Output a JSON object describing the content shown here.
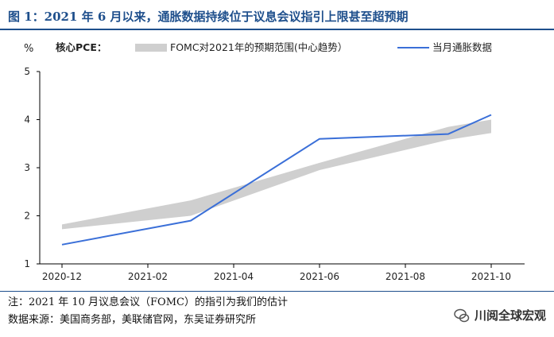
{
  "title": "图 1：2021 年 6 月以来，通胀数据持续位于议息会议指引上限甚至超预期",
  "note": "注：2021 年 10 月议息会议（FOMC）的指引为我们的估计",
  "source": "数据来源：美国商务部，美联储官网，东吴证券研究所",
  "watermark": "川阅全球宏观",
  "chart_data": {
    "type": "line",
    "unit_label": "%",
    "legend_title": "核心PCE：",
    "legend_placement": "top",
    "ylim": [
      1,
      5
    ],
    "yticks": [
      1,
      2,
      3,
      4,
      5
    ],
    "xlim": [
      "2020-12",
      "2021-10"
    ],
    "xticks": [
      "2020-12",
      "2021-02",
      "2021-04",
      "2021-06",
      "2021-08",
      "2021-10"
    ],
    "grid": false,
    "band": {
      "name": "FOMC对2021年的预期范围(中心趋势）",
      "color": "#cfcfcf",
      "x": [
        "2020-12",
        "2021-03",
        "2021-06",
        "2021-09",
        "2021-10"
      ],
      "lower": [
        1.72,
        2.0,
        2.95,
        3.58,
        3.72
      ],
      "upper": [
        1.82,
        2.32,
        3.1,
        3.85,
        4.0
      ]
    },
    "series": [
      {
        "name": "当月通胀数据",
        "color": "#3a6fd8",
        "x": [
          "2020-12",
          "2021-03",
          "2021-06",
          "2021-09",
          "2021-10"
        ],
        "values": [
          1.4,
          1.9,
          3.6,
          3.7,
          4.1
        ]
      }
    ]
  }
}
